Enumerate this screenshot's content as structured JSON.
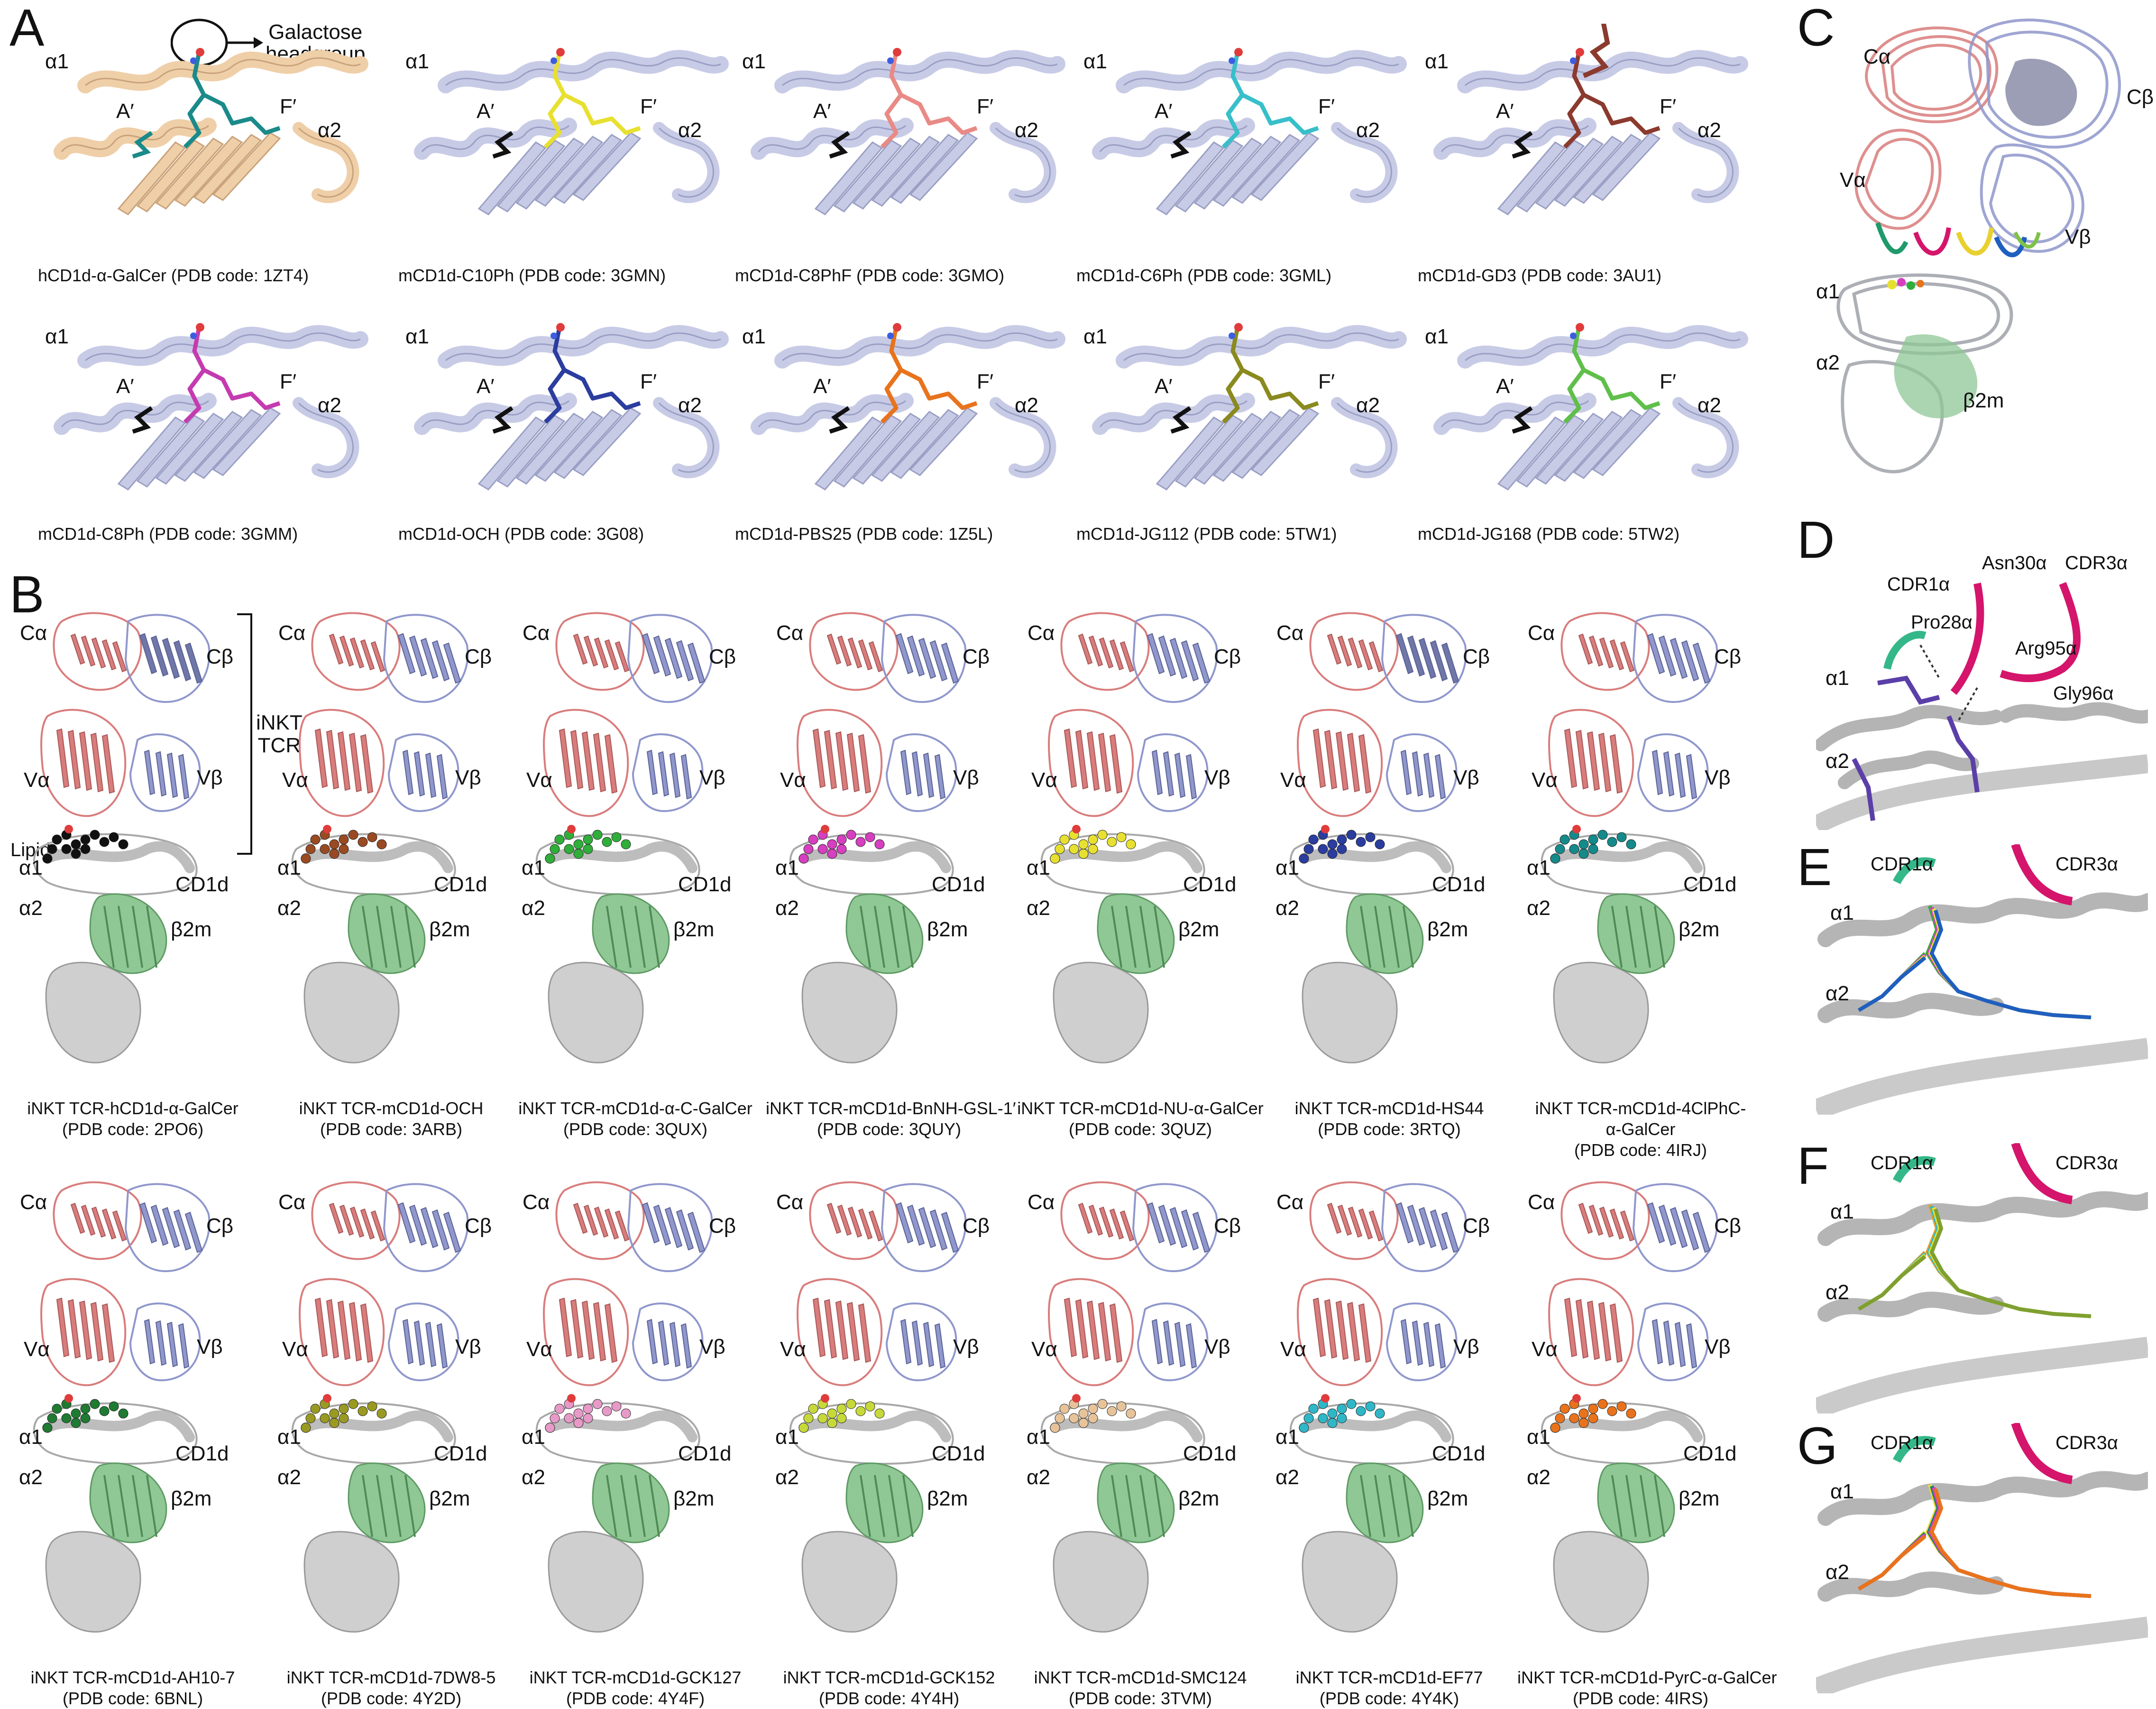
{
  "colors": {
    "helix_gray": "#b8bcc6",
    "cd1d_lavender": "#c8cbe6",
    "human_tan": "#efcfa8",
    "tcr_alpha": "#d97c7c",
    "tcr_beta": "#8f97cc",
    "b2m_green": "#8fc795",
    "black_lipid": "#111111",
    "cdr1": "#34b889",
    "cdr3": "#d4156b",
    "purple": "#5b3fa8"
  },
  "panel_letters": {
    "A": "A",
    "B": "B",
    "C": "C",
    "D": "D",
    "E": "E",
    "F": "F",
    "G": "G"
  },
  "panelA": {
    "galactose_label": "Galactose headgroup",
    "galactose_line1": "Galactose",
    "galactose_line2": "headgroup",
    "labels": {
      "a1": "α1",
      "a2": "α2",
      "Aprime": "A′",
      "Fprime": "F′"
    },
    "structures": [
      {
        "caption": "hCD1d-α-GalCer (PDB code: 1ZT4)",
        "lipid": "#1a8a8a",
        "fold": "#efcfa8"
      },
      {
        "caption": "mCD1d-C10Ph (PDB code: 3GMN)",
        "lipid": "#e8e030",
        "fold": "#c8cbe6"
      },
      {
        "caption": "mCD1d-C8PhF (PDB code: 3GMO)",
        "lipid": "#e98a86",
        "fold": "#c8cbe6"
      },
      {
        "caption": "mCD1d-C6Ph (PDB code: 3GML)",
        "lipid": "#37bfca",
        "fold": "#c8cbe6"
      },
      {
        "caption": "mCD1d-GD3 (PDB code: 3AU1)",
        "lipid": "#8b3a2e",
        "fold": "#c8cbe6"
      },
      {
        "caption": "mCD1d-C8Ph (PDB code: 3GMM)",
        "lipid": "#c43bb0",
        "fold": "#c8cbe6"
      },
      {
        "caption": "mCD1d-OCH (PDB code: 3G08)",
        "lipid": "#2b3d9e",
        "fold": "#c8cbe6"
      },
      {
        "caption": "mCD1d-PBS25 (PDB code: 1Z5L)",
        "lipid": "#e8731c",
        "fold": "#c8cbe6"
      },
      {
        "caption": "mCD1d-JG112 (PDB code: 5TW1)",
        "lipid": "#8a8a1e",
        "fold": "#c8cbe6"
      },
      {
        "caption": "mCD1d-JG168 (PDB code: 5TW2)",
        "lipid": "#5fbf4a",
        "fold": "#c8cbe6"
      }
    ]
  },
  "panelB": {
    "labels": {
      "Ca": "Cα",
      "Cb": "Cβ",
      "Va": "Vα",
      "Vb": "Vβ",
      "a1": "α1",
      "a2": "α2",
      "cd1d": "CD1d",
      "b2m": "β2m",
      "lipid": "Lipid",
      "inkt1": "iNKT",
      "inkt2": "TCR"
    },
    "structures": [
      {
        "line1": "iNKT TCR-hCD1d-α-GalCer",
        "line2": "(PDB code: 2PO6)",
        "line3": "",
        "lipid": "#111111"
      },
      {
        "line1": "iNKT TCR-mCD1d-OCH",
        "line2": "(PDB code: 3ARB)",
        "line3": "",
        "lipid": "#9a4a22"
      },
      {
        "line1": "iNKT TCR-mCD1d-α-C-GalCer",
        "line2": "(PDB code: 3QUX)",
        "line3": "",
        "lipid": "#2fae3a"
      },
      {
        "line1": "iNKT TCR-mCD1d-BnNH-GSL-1′",
        "line2": "(PDB code: 3QUY)",
        "line3": "",
        "lipid": "#d63fbf"
      },
      {
        "line1": "iNKT TCR-mCD1d-NU-α-GalCer",
        "line2": "(PDB code: 3QUZ)",
        "line3": "",
        "lipid": "#e8e030"
      },
      {
        "line1": "iNKT TCR-mCD1d-HS44",
        "line2": "(PDB code: 3RTQ)",
        "line3": "",
        "lipid": "#2b3d9e"
      },
      {
        "line1": "iNKT TCR-mCD1d-4ClPhC-",
        "line2": "α-GalCer",
        "line3": "(PDB code: 4IRJ)",
        "lipid": "#158a8a"
      },
      {
        "line1": "iNKT TCR-mCD1d-AH10-7",
        "line2": "(PDB code: 6BNL)",
        "line3": "",
        "lipid": "#1f7a32"
      },
      {
        "line1": "iNKT TCR-mCD1d-7DW8-5",
        "line2": "(PDB code: 4Y2D)",
        "line3": "",
        "lipid": "#9a9a22"
      },
      {
        "line1": "iNKT TCR-mCD1d-GCK127",
        "line2": "(PDB code: 4Y4F)",
        "line3": "",
        "lipid": "#e79ac7"
      },
      {
        "line1": "iNKT TCR-mCD1d-GCK152",
        "line2": "(PDB code: 4Y4H)",
        "line3": "",
        "lipid": "#c7d93a"
      },
      {
        "line1": "iNKT TCR-mCD1d-SMC124",
        "line2": "(PDB code: 3TVM)",
        "line3": "",
        "lipid": "#e7c39a"
      },
      {
        "line1": "iNKT TCR-mCD1d-EF77",
        "line2": "(PDB code: 4Y4K)",
        "line3": "",
        "lipid": "#2fb7c7"
      },
      {
        "line1": "iNKT TCR-mCD1d-PyrC-α-GalCer",
        "line2": "(PDB code: 4IRS)",
        "line3": "",
        "lipid": "#e8731c"
      }
    ]
  },
  "panelC": {
    "Ca": "Cα",
    "Cb": "Cβ",
    "Va": "Vα",
    "Vb": "Vβ",
    "a1": "α1",
    "a2": "α2",
    "b2m": "β2m"
  },
  "panelD": {
    "cdr1": "CDR1α",
    "asn": "Asn30α",
    "cdr3": "CDR3α",
    "pro": "Pro28α",
    "arg": "Arg95α",
    "gly": "Gly96α",
    "a1": "α1",
    "a2": "α2"
  },
  "panelE": {
    "cdr1": "CDR1α",
    "cdr3": "CDR3α",
    "a1": "α1",
    "a2": "α2"
  },
  "panelF": {
    "cdr1": "CDR1α",
    "cdr3": "CDR3α",
    "a1": "α1",
    "a2": "α2"
  },
  "panelG": {
    "cdr1": "CDR1α",
    "cdr3": "CDR3α",
    "a1": "α1",
    "a2": "α2"
  }
}
